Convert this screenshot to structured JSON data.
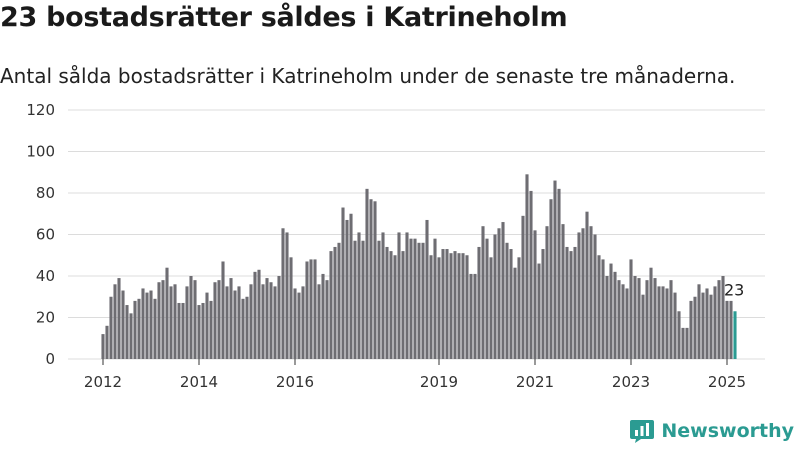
{
  "title": "23 bostadsrätter såldes i Katrineholm",
  "subtitle": "Antal sålda bostadsrätter i Katrineholm under de senaste tre månaderna.",
  "brand": "Newsworthy",
  "colors": {
    "bar": "#6e6d72",
    "highlight": "#2b9b92",
    "grid": "#dcdcdc"
  },
  "chart_data": {
    "type": "bar",
    "x_start": "2012-01",
    "x_step": "month",
    "x_ticks": [
      "2012",
      "2014",
      "2016",
      "2019",
      "2021",
      "2023",
      "2025"
    ],
    "y_ticks": [
      "0",
      "20",
      "40",
      "60",
      "80",
      "100",
      "120"
    ],
    "ylim": [
      0,
      120
    ],
    "grid": true,
    "highlight_label": "23",
    "values": [
      12,
      16,
      30,
      36,
      39,
      33,
      26,
      22,
      28,
      29,
      34,
      32,
      33,
      29,
      37,
      38,
      44,
      35,
      36,
      27,
      27,
      35,
      40,
      38,
      26,
      27,
      32,
      28,
      37,
      38,
      47,
      35,
      39,
      33,
      35,
      29,
      30,
      36,
      42,
      43,
      36,
      39,
      37,
      35,
      40,
      63,
      61,
      49,
      34,
      32,
      35,
      47,
      48,
      48,
      36,
      41,
      38,
      52,
      54,
      56,
      73,
      67,
      70,
      57,
      61,
      57,
      82,
      77,
      76,
      57,
      61,
      54,
      52,
      50,
      61,
      52,
      61,
      58,
      58,
      56,
      56,
      67,
      50,
      58,
      49,
      53,
      53,
      51,
      52,
      51,
      51,
      50,
      41,
      41,
      54,
      64,
      58,
      49,
      60,
      63,
      66,
      56,
      53,
      44,
      49,
      69,
      89,
      81,
      62,
      46,
      53,
      64,
      77,
      86,
      82,
      65,
      54,
      52,
      54,
      61,
      63,
      71,
      64,
      60,
      50,
      48,
      40,
      46,
      42,
      38,
      36,
      34,
      48,
      40,
      39,
      31,
      38,
      44,
      39,
      35,
      35,
      34,
      38,
      32,
      23,
      15,
      15,
      28,
      30,
      36,
      32,
      34,
      31,
      35,
      38,
      40,
      28,
      28,
      23
    ]
  }
}
